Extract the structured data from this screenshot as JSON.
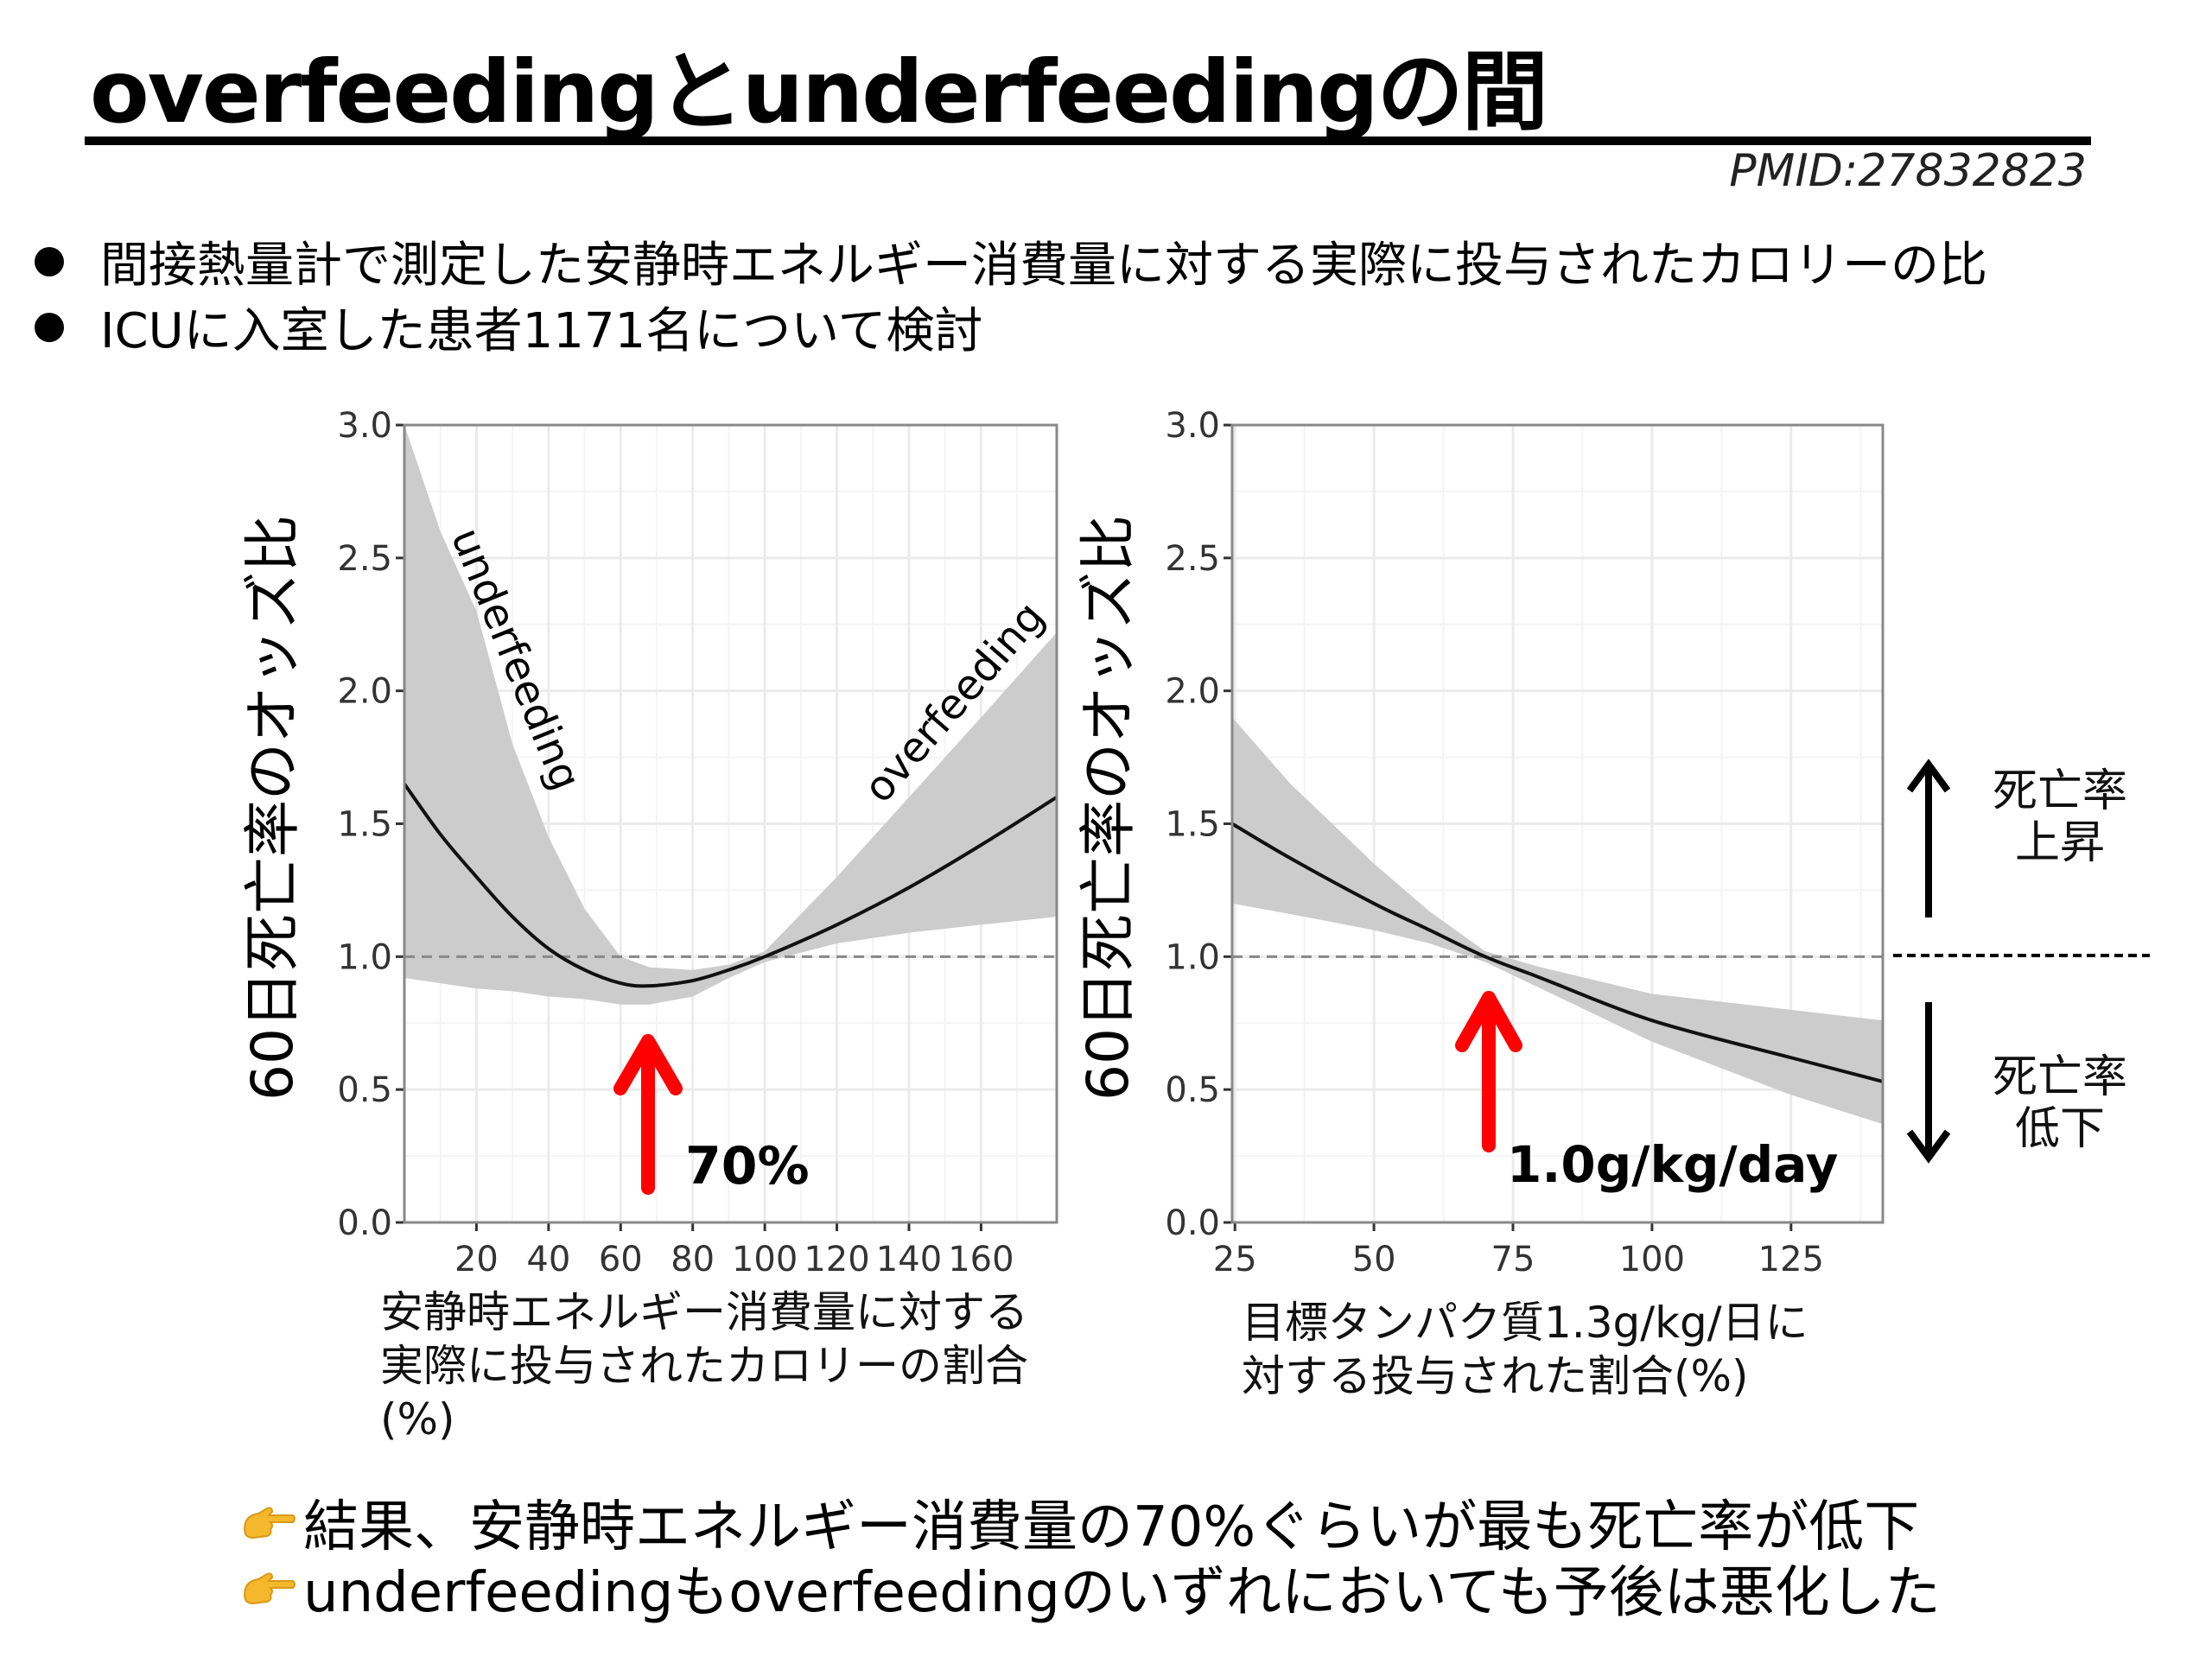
{
  "header": {
    "title": "overfeedingとunderfeedingの間",
    "pmid": "PMID:27832823"
  },
  "bullets": [
    "間接熱量計で測定した安静時エネルギー消費量に対する実際に投与されたカロリーの比",
    "ICUに入室した患者1171名について検討"
  ],
  "chart_data": [
    {
      "type": "line",
      "ylabel": "60日死亡率のオッズ比",
      "xlabel_lines": [
        "安静時エネルギー消費量に対する",
        "実際に投与されたカロリーの割合",
        "(%)"
      ],
      "xlim": [
        0,
        181
      ],
      "ylim": [
        0,
        3.0
      ],
      "xticks": [
        20,
        40,
        60,
        80,
        100,
        120,
        140,
        160
      ],
      "yticks": [
        "0.0",
        "0.5",
        "1.0",
        "1.5",
        "2.0",
        "2.5",
        "3.0"
      ],
      "grid": true,
      "reference_line": 1.0,
      "x": [
        0,
        10,
        20,
        30,
        40,
        50,
        60,
        68,
        80,
        90,
        100,
        120,
        140,
        160,
        181
      ],
      "y": [
        1.65,
        1.46,
        1.3,
        1.15,
        1.03,
        0.95,
        0.9,
        0.89,
        0.91,
        0.95,
        1.0,
        1.12,
        1.26,
        1.42,
        1.6
      ],
      "ci_lower": [
        0.92,
        0.9,
        0.88,
        0.87,
        0.85,
        0.84,
        0.82,
        0.82,
        0.85,
        0.92,
        0.98,
        1.05,
        1.09,
        1.12,
        1.15
      ],
      "ci_upper": [
        3.0,
        2.6,
        2.3,
        1.8,
        1.45,
        1.18,
        1.0,
        0.96,
        0.95,
        0.97,
        1.02,
        1.3,
        1.6,
        1.9,
        2.22
      ],
      "annotations": [
        "underfeeding",
        "overfeeding"
      ],
      "highlight": {
        "x": 68,
        "label": "70%",
        "color": "#ff0000"
      },
      "colors": {
        "line": "#111111",
        "band": "#cccccc",
        "grid": "#ebebeb"
      }
    },
    {
      "type": "line",
      "ylabel": "60日死亡率のオッズ比",
      "xlabel_lines": [
        "目標タンパク質1.3g/kg/日に",
        "対する投与された割合(%)"
      ],
      "xlim": [
        24.5,
        141.5
      ],
      "ylim": [
        0,
        3.0
      ],
      "xticks": [
        25,
        50,
        75,
        100,
        125
      ],
      "yticks": [
        "0.0",
        "0.5",
        "1.0",
        "1.5",
        "2.0",
        "2.5",
        "3.0"
      ],
      "grid": true,
      "reference_line": 1.0,
      "x": [
        24.5,
        35,
        50,
        60,
        70,
        80,
        100,
        125,
        141.5
      ],
      "y": [
        1.5,
        1.37,
        1.2,
        1.1,
        1.0,
        0.92,
        0.76,
        0.62,
        0.53
      ],
      "ci_lower": [
        1.2,
        1.16,
        1.1,
        1.05,
        0.98,
        0.88,
        0.68,
        0.48,
        0.37
      ],
      "ci_upper": [
        1.9,
        1.65,
        1.35,
        1.17,
        1.02,
        0.96,
        0.86,
        0.8,
        0.76
      ],
      "highlight": {
        "x": 70,
        "label": "1.0g/kg/day",
        "color": "#ff0000"
      },
      "colors": {
        "line": "#111111",
        "band": "#cccccc",
        "grid": "#ebebeb"
      }
    }
  ],
  "legend_side": {
    "up": [
      "死亡率",
      "上昇"
    ],
    "down": [
      "死亡率",
      "低下"
    ]
  },
  "conclusions": [
    "結果、安静時エネルギー消費量の70%ぐらいが最も死亡率が低下",
    "underfeedingもoverfeedingのいずれにおいても予後は悪化した"
  ],
  "icons": {
    "conclusion_bullet": "pointing-hand-icon"
  }
}
